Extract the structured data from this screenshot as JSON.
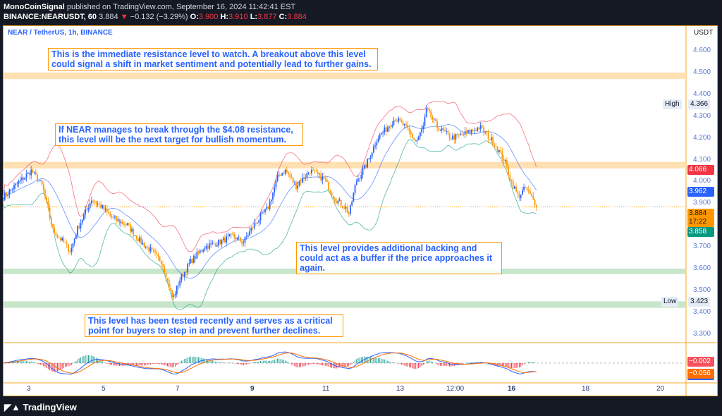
{
  "header": {
    "author": "MonoCoinSignal",
    "published": "published on TradingView.com, September 16, 2024 11:42:41 EST",
    "symbol": "BINANCE:NEARUSDT, 60",
    "last": "3.884",
    "arrow": "▼",
    "change": "−0.132 (−3.29%)",
    "o_label": "O:",
    "o": "3.900",
    "h_label": "H:",
    "h": "3.910",
    "l_label": "L:",
    "l": "3.877",
    "c_label": "C:",
    "c": "3.884"
  },
  "chart_title": "NEAR / TetherUS, 1h, BINANCE",
  "currency": "USDT",
  "notes": [
    "This is the immediate resistance level to watch. A breakout above this level could signal a shift in market sentiment and potentially lead to further gains.",
    "If NEAR manages to break through the $4.08 resistance, this level will be the next target for bullish momentum.",
    "This level provides additional backing and could act as a buffer if the price approaches it again.",
    "This level has been tested recently and serves as a critical point for buyers to step in and prevent further declines."
  ],
  "price_axis": [
    "4.600",
    "4.500",
    "4.400",
    "4.300",
    "4.200",
    "4.100",
    "4.000",
    "3.900",
    "3.700",
    "3.600",
    "3.500",
    "3.400",
    "3.300"
  ],
  "tags": {
    "high_label": "High",
    "high": "4.366",
    "low_label": "Low",
    "low": "3.423",
    "band_upper": "4.066",
    "band_mid": "3.962",
    "last": "3.884",
    "countdown": "17:22",
    "band_lower": "3.858",
    "macd1": "−0.002",
    "macd2": "−0.056"
  },
  "time_axis": [
    "3",
    "5",
    "7",
    "9",
    "11",
    "13",
    "12:00",
    "16",
    "18",
    "20"
  ],
  "brand": "TradingView",
  "colors": {
    "up": "#2962ff",
    "down": "#ff9800",
    "resistance_zone": "#ffe0b2",
    "support_zone": "#c8e6c9",
    "note_text": "#2962ff",
    "note_border": "#ff9800"
  },
  "chart_data": {
    "type": "candlestick",
    "title": "NEAR / TetherUS, 1h, BINANCE",
    "x_unit": "day of September 2024",
    "ylim": [
      3.25,
      4.65
    ],
    "zones": [
      {
        "type": "resistance",
        "from": 4.47,
        "to": 4.5
      },
      {
        "type": "resistance",
        "from": 4.06,
        "to": 4.09
      },
      {
        "type": "support",
        "from": 3.575,
        "to": 3.6
      },
      {
        "type": "support",
        "from": 3.42,
        "to": 3.45
      }
    ],
    "close_path": [
      [
        2.31,
        3.93
      ],
      [
        2.5,
        3.96
      ],
      [
        2.88,
        4.02
      ],
      [
        3.07,
        4.05
      ],
      [
        3.36,
        3.98
      ],
      [
        3.64,
        3.78
      ],
      [
        3.93,
        3.72
      ],
      [
        4.12,
        3.68
      ],
      [
        4.3,
        3.78
      ],
      [
        4.69,
        3.92
      ],
      [
        4.97,
        3.88
      ],
      [
        5.26,
        3.83
      ],
      [
        5.64,
        3.8
      ],
      [
        6.02,
        3.72
      ],
      [
        6.3,
        3.68
      ],
      [
        6.58,
        3.63
      ],
      [
        6.87,
        3.46
      ],
      [
        7.06,
        3.55
      ],
      [
        7.34,
        3.63
      ],
      [
        7.72,
        3.7
      ],
      [
        8.1,
        3.72
      ],
      [
        8.48,
        3.75
      ],
      [
        8.76,
        3.72
      ],
      [
        9.05,
        3.8
      ],
      [
        9.43,
        3.88
      ],
      [
        9.71,
        4.03
      ],
      [
        9.9,
        4.05
      ],
      [
        10.18,
        3.98
      ],
      [
        10.56,
        4.05
      ],
      [
        10.94,
        4.01
      ],
      [
        11.23,
        3.92
      ],
      [
        11.51,
        3.88
      ],
      [
        11.61,
        3.85
      ],
      [
        11.8,
        4.0
      ],
      [
        12.08,
        4.08
      ],
      [
        12.37,
        4.2
      ],
      [
        12.65,
        4.25
      ],
      [
        12.84,
        4.29
      ],
      [
        13.13,
        4.25
      ],
      [
        13.41,
        4.18
      ],
      [
        13.6,
        4.25
      ],
      [
        13.69,
        4.33
      ],
      [
        13.98,
        4.25
      ],
      [
        14.36,
        4.2
      ],
      [
        14.74,
        4.22
      ],
      [
        15.12,
        4.25
      ],
      [
        15.49,
        4.18
      ],
      [
        15.78,
        4.1
      ],
      [
        15.97,
        4.0
      ],
      [
        16.16,
        3.93
      ],
      [
        16.35,
        3.97
      ],
      [
        16.54,
        3.92
      ],
      [
        16.67,
        3.884
      ]
    ]
  }
}
